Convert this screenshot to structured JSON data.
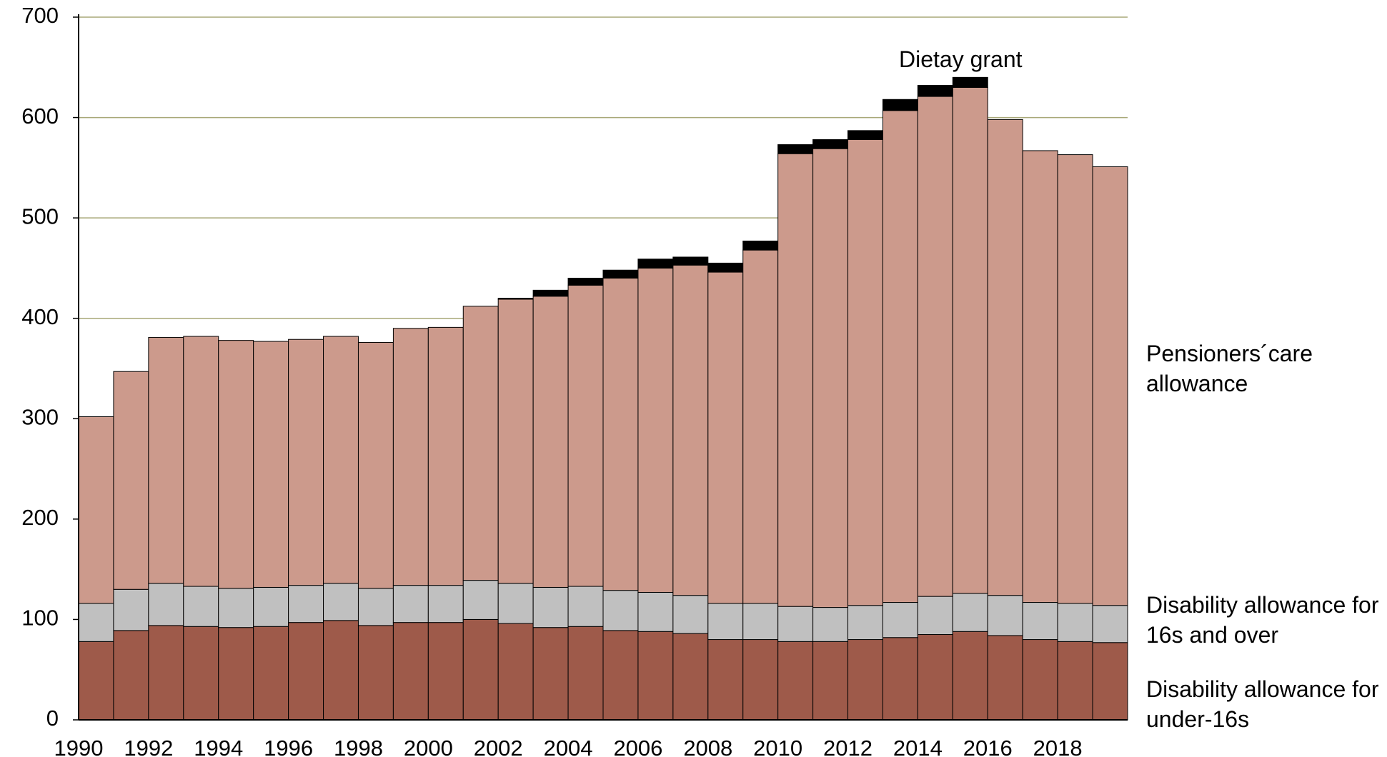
{
  "chart_data": {
    "type": "stacked_bar",
    "categories": [
      1990,
      null,
      1992,
      null,
      1994,
      null,
      1996,
      null,
      1998,
      null,
      2000,
      null,
      2002,
      null,
      2004,
      null,
      2006,
      null,
      2008,
      null,
      2010,
      null,
      2012,
      null,
      2014,
      null,
      2016,
      null,
      2018,
      null
    ],
    "series": [
      {
        "name": "Disability allowance for under-16s",
        "color": "#9e5a4a",
        "values": [
          78,
          89,
          94,
          93,
          92,
          93,
          97,
          99,
          94,
          97,
          97,
          100,
          96,
          92,
          93,
          89,
          88,
          86,
          80,
          80,
          78,
          78,
          80,
          82,
          85,
          88,
          84,
          80,
          78,
          77
        ]
      },
      {
        "name": "Disability allowance for 16s and over",
        "color": "#c0c0c0",
        "values": [
          38,
          41,
          42,
          40,
          39,
          39,
          37,
          37,
          37,
          37,
          37,
          39,
          40,
          40,
          40,
          40,
          39,
          38,
          36,
          36,
          35,
          34,
          34,
          35,
          38,
          38,
          40,
          37,
          38,
          37
        ]
      },
      {
        "name": "Pensioners´care allowance",
        "color": "#cc9a8c",
        "values": [
          186,
          217,
          245,
          249,
          247,
          245,
          245,
          246,
          245,
          256,
          257,
          273,
          283,
          290,
          300,
          311,
          323,
          329,
          330,
          352,
          451,
          457,
          464,
          490,
          498,
          504,
          474,
          450,
          447,
          437
        ]
      },
      {
        "name": "Dietay grant",
        "color": "#000000",
        "values": [
          0,
          0,
          0,
          0,
          0,
          0,
          0,
          0,
          0,
          0,
          0,
          0,
          1,
          6,
          7,
          8,
          9,
          8,
          9,
          9,
          9,
          9,
          9,
          11,
          11,
          10,
          0,
          0,
          0,
          0
        ]
      }
    ],
    "ylim": [
      0,
      700
    ],
    "yticks": [
      0,
      100,
      200,
      300,
      400,
      500,
      600,
      700
    ],
    "grid": true
  }
}
